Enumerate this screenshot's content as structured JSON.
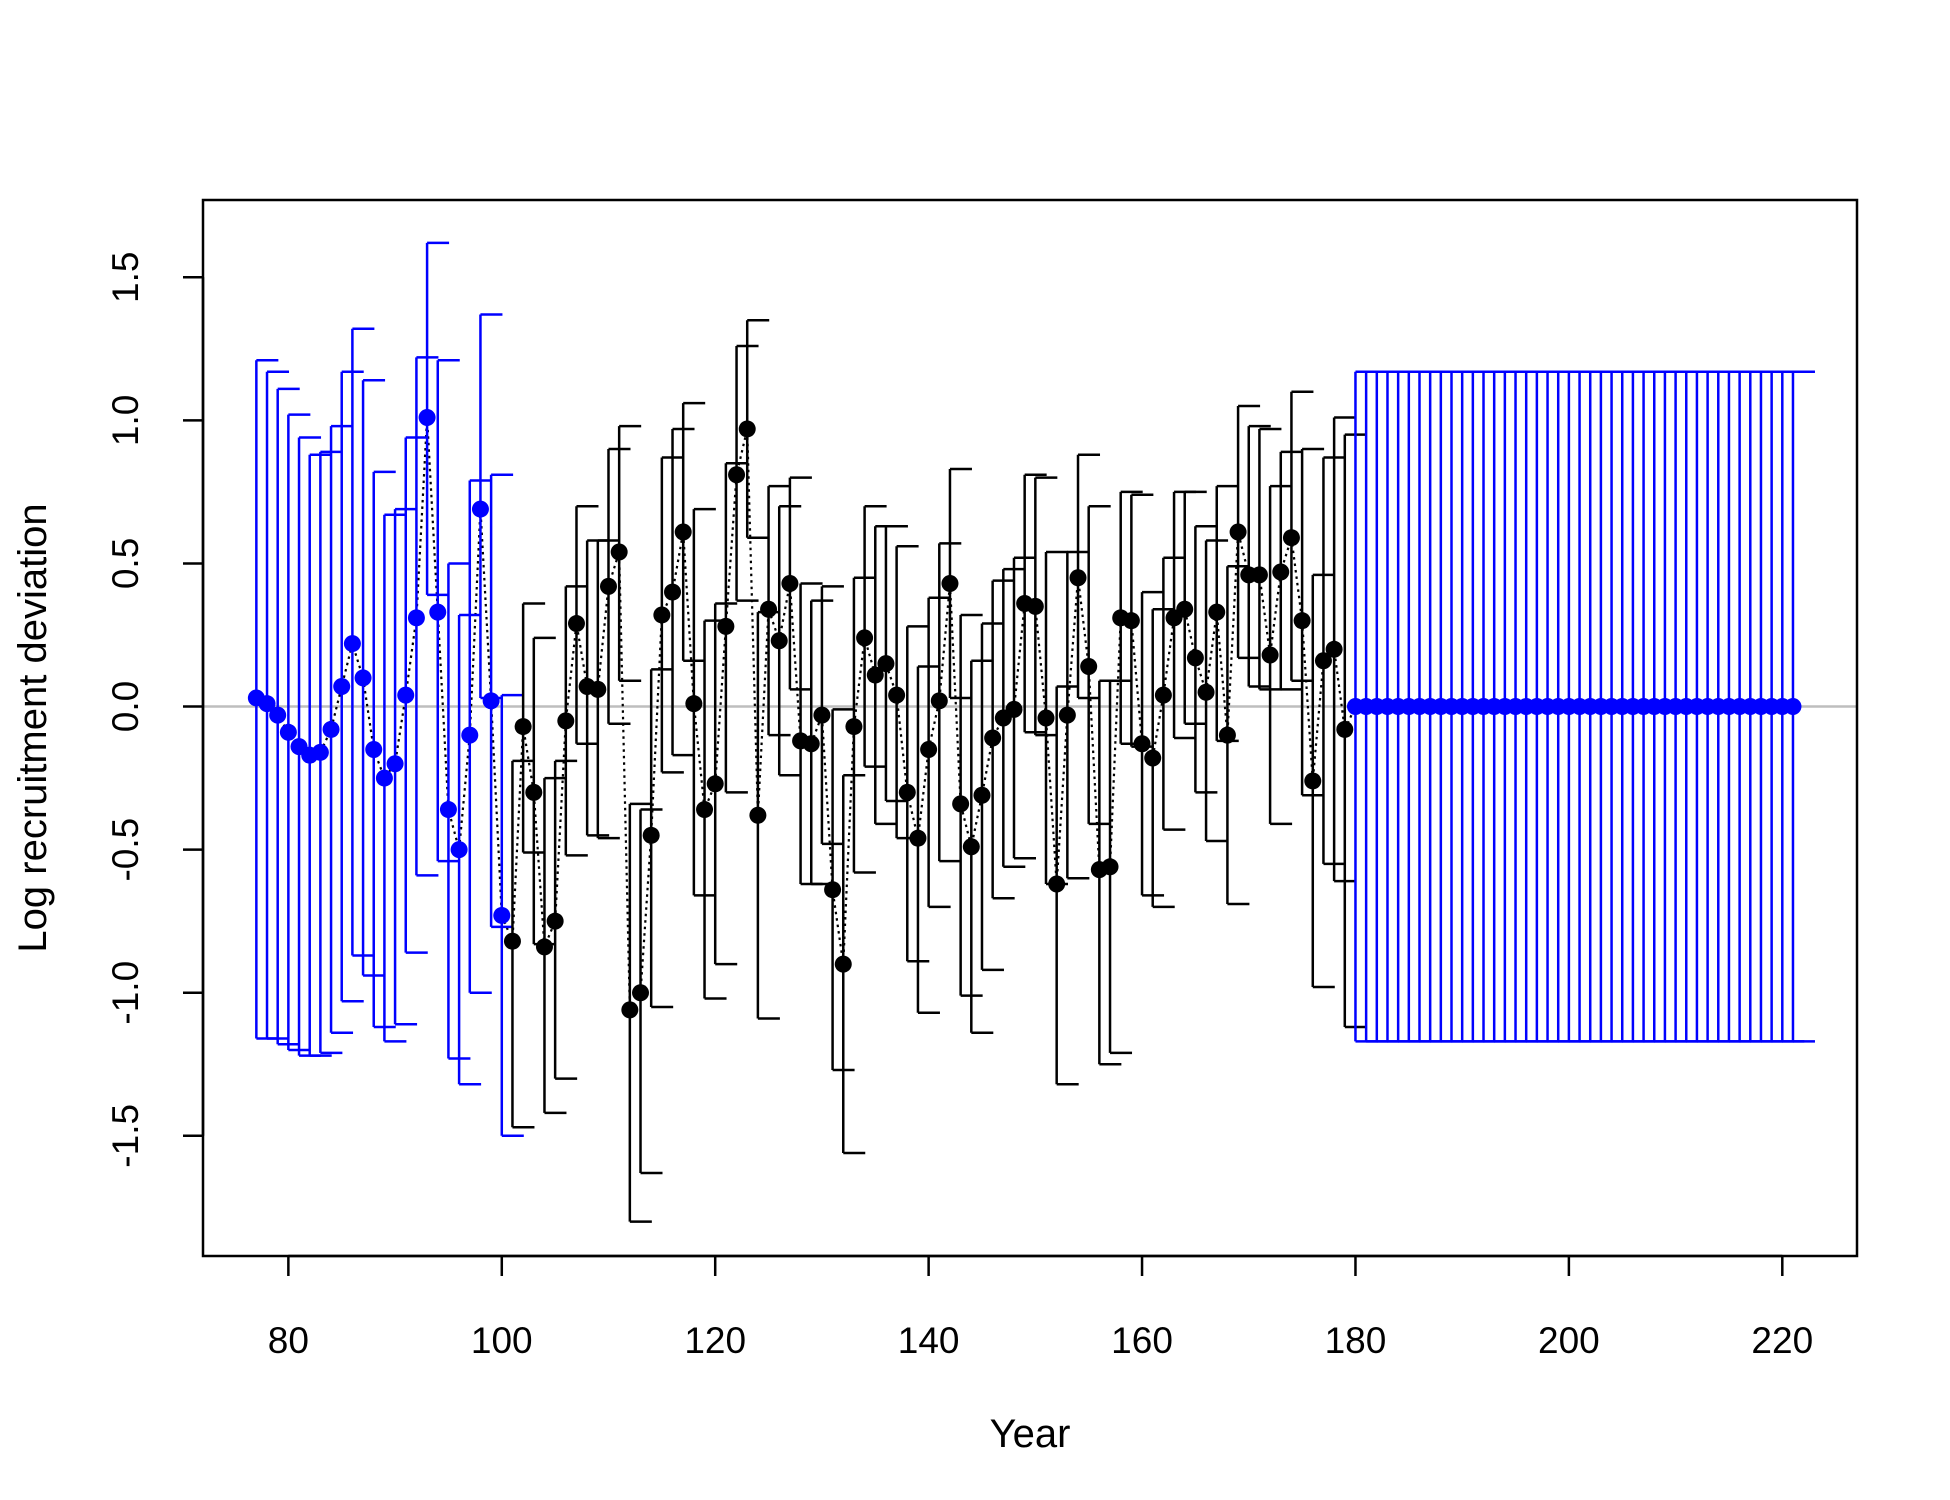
{
  "chart_data": {
    "type": "scatter",
    "title": "",
    "xlabel": "Year",
    "ylabel": "Log recruitment deviation",
    "xlim": [
      72,
      227
    ],
    "ylim": [
      -1.92,
      1.77
    ],
    "xticks": [
      80,
      100,
      120,
      140,
      160,
      180,
      200,
      220
    ],
    "yticks": [
      -1.5,
      -1.0,
      -0.5,
      0.0,
      0.5,
      1.0,
      1.5
    ],
    "reference_line": 0.0,
    "grid": false,
    "legend": "none",
    "colors": {
      "early_and_forecast": "#0000ff",
      "main": "#000000",
      "reference_line": "#bebebe",
      "frame": "#000000"
    },
    "series": [
      {
        "segment": "early",
        "years": [
          77,
          78,
          79,
          80,
          81,
          82,
          83,
          84,
          85,
          86,
          87,
          88,
          89,
          90,
          91,
          92,
          93,
          94,
          95,
          96,
          97,
          98,
          99,
          100
        ],
        "values": [
          0.03,
          0.01,
          -0.03,
          -0.09,
          -0.14,
          -0.17,
          -0.16,
          -0.08,
          0.07,
          0.22,
          0.1,
          -0.15,
          -0.25,
          -0.2,
          0.04,
          0.31,
          1.01,
          0.33,
          -0.36,
          -0.5,
          -0.1,
          0.69,
          0.02,
          -0.73
        ],
        "lower": [
          -1.16,
          -1.16,
          -1.18,
          -1.2,
          -1.22,
          -1.22,
          -1.21,
          -1.14,
          -1.03,
          -0.87,
          -0.94,
          -1.12,
          -1.17,
          -1.11,
          -0.86,
          -0.59,
          0.39,
          -0.54,
          -1.23,
          -1.32,
          -1.0,
          0.03,
          -0.77,
          -1.5
        ],
        "upper": [
          1.21,
          1.17,
          1.11,
          1.02,
          0.94,
          0.88,
          0.89,
          0.98,
          1.17,
          1.32,
          1.14,
          0.82,
          0.67,
          0.69,
          0.94,
          1.22,
          1.62,
          1.21,
          0.5,
          0.32,
          0.79,
          1.37,
          0.81,
          0.04
        ]
      },
      {
        "segment": "main",
        "years": [
          101,
          102,
          103,
          104,
          105,
          106,
          107,
          108,
          109,
          110,
          111,
          112,
          113,
          114,
          115,
          116,
          117,
          118,
          119,
          120,
          121,
          122,
          123,
          124,
          125,
          126,
          127,
          128,
          129,
          130,
          131,
          132,
          133,
          134,
          135,
          136,
          137,
          138,
          139,
          140,
          141,
          142,
          143,
          144,
          145,
          146,
          147,
          148,
          149,
          150,
          151,
          152,
          153,
          154,
          155,
          156,
          157,
          158,
          159,
          160,
          161,
          162,
          163,
          164,
          165,
          166,
          167,
          168,
          169,
          170,
          171,
          172,
          173,
          174,
          175,
          176,
          177,
          178,
          179
        ],
        "values": [
          -0.82,
          -0.07,
          -0.3,
          -0.84,
          -0.75,
          -0.05,
          0.29,
          0.07,
          0.06,
          0.42,
          0.54,
          -1.06,
          -1.0,
          -0.45,
          0.32,
          0.4,
          0.61,
          0.01,
          -0.36,
          -0.27,
          0.28,
          0.81,
          0.97,
          -0.38,
          0.34,
          0.23,
          0.43,
          -0.12,
          -0.13,
          -0.03,
          -0.64,
          -0.9,
          -0.07,
          0.24,
          0.11,
          0.15,
          0.04,
          -0.3,
          -0.46,
          -0.15,
          0.02,
          0.43,
          -0.34,
          -0.49,
          -0.31,
          -0.11,
          -0.04,
          -0.01,
          0.36,
          0.35,
          -0.04,
          -0.62,
          -0.03,
          0.45,
          0.14,
          -0.57,
          -0.56,
          0.31,
          0.3,
          -0.13,
          -0.18,
          0.04,
          0.31,
          0.34,
          0.17,
          0.05,
          0.33,
          -0.1,
          0.61,
          0.46,
          0.46,
          0.18,
          0.47,
          0.59,
          0.3,
          -0.26,
          0.16,
          0.2,
          -0.08
        ],
        "lower": [
          -1.47,
          -0.51,
          -0.83,
          -1.42,
          -1.3,
          -0.52,
          -0.13,
          -0.45,
          -0.46,
          -0.06,
          0.09,
          -1.8,
          -1.63,
          -1.05,
          -0.23,
          -0.17,
          0.16,
          -0.66,
          -1.02,
          -0.9,
          -0.3,
          0.37,
          0.59,
          -1.09,
          -0.1,
          -0.24,
          0.06,
          -0.62,
          -0.62,
          -0.48,
          -1.27,
          -1.56,
          -0.58,
          -0.21,
          -0.41,
          -0.33,
          -0.46,
          -0.89,
          -1.07,
          -0.7,
          -0.54,
          0.03,
          -1.01,
          -1.14,
          -0.92,
          -0.67,
          -0.56,
          -0.53,
          -0.09,
          -0.1,
          -0.62,
          -1.32,
          -0.6,
          0.03,
          -0.41,
          -1.25,
          -1.21,
          -0.13,
          -0.14,
          -0.66,
          -0.7,
          -0.43,
          -0.11,
          -0.06,
          -0.3,
          -0.47,
          -0.12,
          -0.69,
          0.17,
          0.07,
          0.06,
          -0.41,
          0.06,
          0.09,
          -0.31,
          -0.98,
          -0.55,
          -0.61,
          -1.12
        ],
        "upper": [
          -0.19,
          0.36,
          0.24,
          -0.25,
          -0.19,
          0.42,
          0.7,
          0.58,
          0.58,
          0.9,
          0.98,
          -0.34,
          -0.36,
          0.13,
          0.87,
          0.97,
          1.06,
          0.69,
          0.3,
          0.36,
          0.85,
          1.26,
          1.35,
          0.33,
          0.77,
          0.7,
          0.8,
          0.43,
          0.37,
          0.42,
          -0.01,
          -0.24,
          0.45,
          0.7,
          0.63,
          0.63,
          0.56,
          0.28,
          0.14,
          0.38,
          0.57,
          0.83,
          0.32,
          0.16,
          0.29,
          0.44,
          0.48,
          0.52,
          0.81,
          0.8,
          0.54,
          0.07,
          0.54,
          0.88,
          0.7,
          0.09,
          0.09,
          0.75,
          0.74,
          0.4,
          0.34,
          0.52,
          0.75,
          0.75,
          0.63,
          0.58,
          0.77,
          0.49,
          1.05,
          0.98,
          0.97,
          0.77,
          0.89,
          1.1,
          0.9,
          0.46,
          0.87,
          1.01,
          0.95
        ]
      },
      {
        "segment": "forecast",
        "years": [
          180,
          181,
          182,
          183,
          184,
          185,
          186,
          187,
          188,
          189,
          190,
          191,
          192,
          193,
          194,
          195,
          196,
          197,
          198,
          199,
          200,
          201,
          202,
          203,
          204,
          205,
          206,
          207,
          208,
          209,
          210,
          211,
          212,
          213,
          214,
          215,
          216,
          217,
          218,
          219,
          220,
          221
        ],
        "values": [
          0,
          0,
          0,
          0,
          0,
          0,
          0,
          0,
          0,
          0,
          0,
          0,
          0,
          0,
          0,
          0,
          0,
          0,
          0,
          0,
          0,
          0,
          0,
          0,
          0,
          0,
          0,
          0,
          0,
          0,
          0,
          0,
          0,
          0,
          0,
          0,
          0,
          0,
          0,
          0,
          0,
          0
        ],
        "lower": [
          -1.17,
          -1.17,
          -1.17,
          -1.17,
          -1.17,
          -1.17,
          -1.17,
          -1.17,
          -1.17,
          -1.17,
          -1.17,
          -1.17,
          -1.17,
          -1.17,
          -1.17,
          -1.17,
          -1.17,
          -1.17,
          -1.17,
          -1.17,
          -1.17,
          -1.17,
          -1.17,
          -1.17,
          -1.17,
          -1.17,
          -1.17,
          -1.17,
          -1.17,
          -1.17,
          -1.17,
          -1.17,
          -1.17,
          -1.17,
          -1.17,
          -1.17,
          -1.17,
          -1.17,
          -1.17,
          -1.17,
          -1.17,
          -1.17
        ],
        "upper": [
          1.17,
          1.17,
          1.17,
          1.17,
          1.17,
          1.17,
          1.17,
          1.17,
          1.17,
          1.17,
          1.17,
          1.17,
          1.17,
          1.17,
          1.17,
          1.17,
          1.17,
          1.17,
          1.17,
          1.17,
          1.17,
          1.17,
          1.17,
          1.17,
          1.17,
          1.17,
          1.17,
          1.17,
          1.17,
          1.17,
          1.17,
          1.17,
          1.17,
          1.17,
          1.17,
          1.17,
          1.17,
          1.17,
          1.17,
          1.17,
          1.17,
          1.17
        ]
      }
    ]
  }
}
